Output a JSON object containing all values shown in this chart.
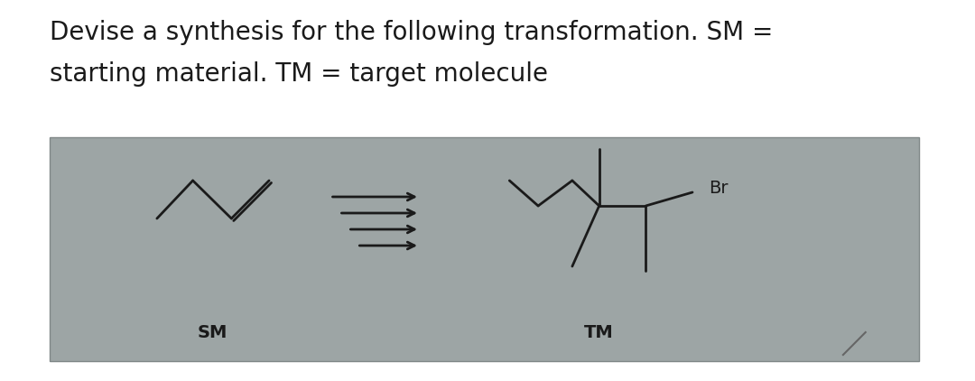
{
  "title_line1": "Devise a synthesis for the following transformation. SM =",
  "title_line2": "starting material. TM = target molecule",
  "title_fontsize": 20,
  "title_color": "#1a1a1a",
  "bg_color": "#ffffff",
  "box_bg": "#9da5a5",
  "line_color": "#1a1a1a",
  "line_width": 2.0,
  "arrow_color": "#1a1a1a",
  "sm_label": "SM",
  "tm_label": "TM",
  "br_label": "Br"
}
